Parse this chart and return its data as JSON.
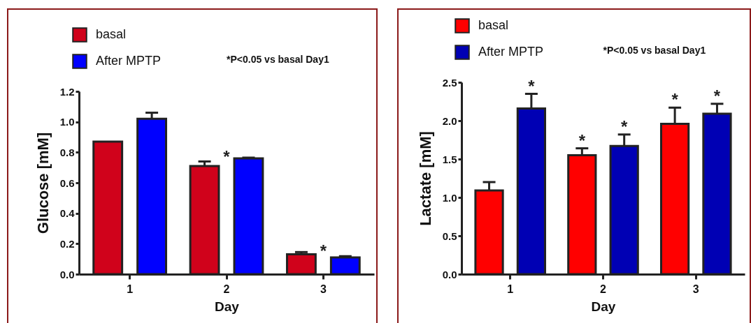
{
  "chart_data": [
    {
      "type": "bar",
      "categories": [
        "1",
        "2",
        "3"
      ],
      "xlabel": "Day",
      "ylabel": "Glucose [mM]",
      "ylim": [
        0,
        1.2
      ],
      "yticks": [
        {
          "value": 0,
          "label": "0.0"
        },
        0.2,
        0.4,
        0.6,
        0.8,
        {
          "value": 1,
          "label": "1.0"
        },
        1.2
      ],
      "legend": "top",
      "grid": false,
      "series": [
        {
          "name": "basal",
          "color": "#d0021b",
          "values": [
            0.87,
            0.71,
            0.13
          ],
          "errors": [
            null,
            0.03,
            0.015
          ]
        },
        {
          "name": "After MPTP",
          "color": "#0000ff",
          "values": [
            1.02,
            0.76,
            0.11
          ],
          "errors": [
            0.04,
            0.005,
            0.008
          ]
        }
      ],
      "annotations": [
        "*P<0.05 vs basal Day1",
        "*",
        "*"
      ]
    },
    {
      "type": "bar",
      "categories": [
        "1",
        "2",
        "3"
      ],
      "xlabel": "Day",
      "ylabel": "Lactate [mM]",
      "ylim": [
        0,
        2.5
      ],
      "yticks": [
        {
          "value": 0,
          "label": "0.0"
        },
        0.5,
        {
          "value": 1,
          "label": "1.0"
        },
        1.5,
        {
          "value": 2,
          "label": "2.0"
        },
        2.5
      ],
      "legend": "top",
      "grid": false,
      "series": [
        {
          "name": "basal",
          "color": "#ff0000",
          "values": [
            1.09,
            1.55,
            1.96
          ],
          "errors": [
            0.11,
            0.09,
            0.21
          ]
        },
        {
          "name": "After MPTP",
          "color": "#0000b4",
          "values": [
            2.16,
            1.67,
            2.09
          ],
          "errors": [
            0.19,
            0.15,
            0.13
          ]
        }
      ],
      "annotations": [
        "*P<0.05 vs basal Day1",
        "*",
        "*",
        "*",
        "*",
        "*"
      ]
    }
  ]
}
